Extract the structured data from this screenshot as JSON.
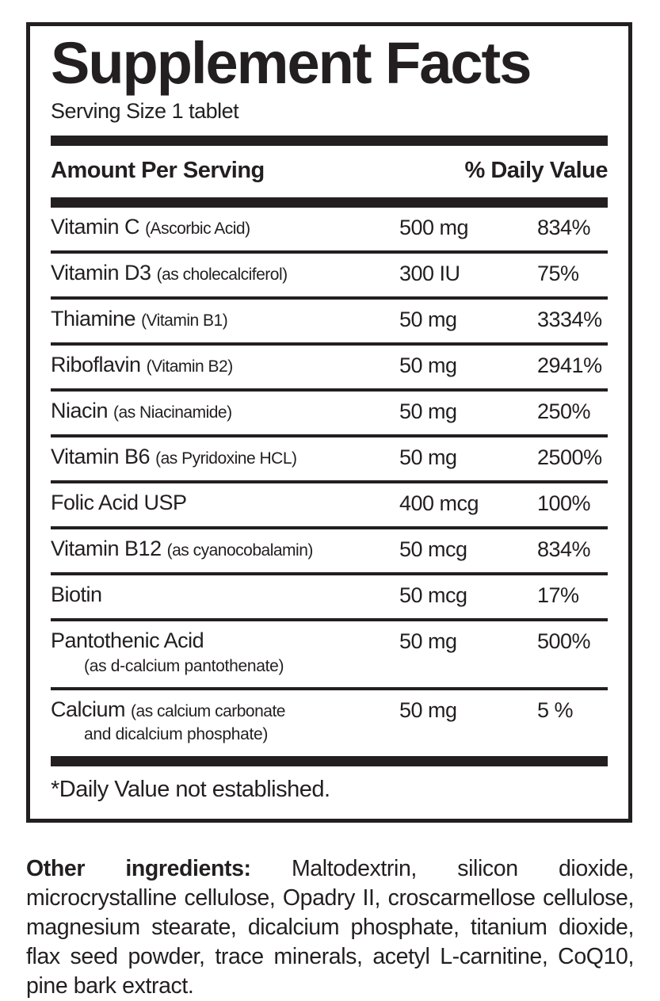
{
  "label": {
    "title": "Supplement Facts",
    "serving_size": "Serving Size 1 tablet",
    "columns": {
      "amount_header": "Amount Per Serving",
      "dv_header": "% Daily Value"
    },
    "rows": [
      {
        "name": "Vitamin C",
        "detail": "(Ascorbic Acid)",
        "detail2": "",
        "amount": "500 mg",
        "dv": "834%"
      },
      {
        "name": "Vitamin D3",
        "detail": "(as cholecalciferol)",
        "detail2": "",
        "amount": "300 IU",
        "dv": "75%"
      },
      {
        "name": "Thiamine",
        "detail": "(Vitamin B1)",
        "detail2": "",
        "amount": "50 mg",
        "dv": "3334%"
      },
      {
        "name": "Riboflavin",
        "detail": "(Vitamin B2)",
        "detail2": "",
        "amount": "50 mg",
        "dv": "2941%"
      },
      {
        "name": "Niacin",
        "detail": "(as Niacinamide)",
        "detail2": "",
        "amount": "50 mg",
        "dv": "250%"
      },
      {
        "name": "Vitamin B6",
        "detail": "(as Pyridoxine HCL)",
        "detail2": "",
        "amount": "50 mg",
        "dv": "2500%"
      },
      {
        "name": "Folic Acid USP",
        "detail": "",
        "detail2": "",
        "amount": "400 mcg",
        "dv": "100%"
      },
      {
        "name": "Vitamin B12",
        "detail": "(as cyanocobalamin)",
        "detail2": "",
        "amount": "50 mcg",
        "dv": "834%"
      },
      {
        "name": "Biotin",
        "detail": "",
        "detail2": "",
        "amount": "50 mcg",
        "dv": "17%"
      },
      {
        "name": "Pantothenic Acid",
        "detail": "",
        "detail2": "(as d-calcium pantothenate)",
        "amount": "50 mg",
        "dv": "500%"
      },
      {
        "name": "Calcium",
        "detail": "(as calcium carbonate",
        "detail2": "and dicalcium phosphate)",
        "amount": "50 mg",
        "dv": "5 %"
      }
    ],
    "footnote": "*Daily Value not established."
  },
  "other_ingredients": {
    "lead": "Other ingredients:",
    "text": " Maltodextrin, silicon dioxide, microcrystalline cellulose, Opadry II, croscarmellose cellulose, magnesium stearate, dicalcium phosphate, titanium dioxide, flax seed powder, trace minerals, acetyl L-carnitine, CoQ10, pine bark extract."
  },
  "colors": {
    "ink": "#231f20",
    "background": "#ffffff"
  }
}
